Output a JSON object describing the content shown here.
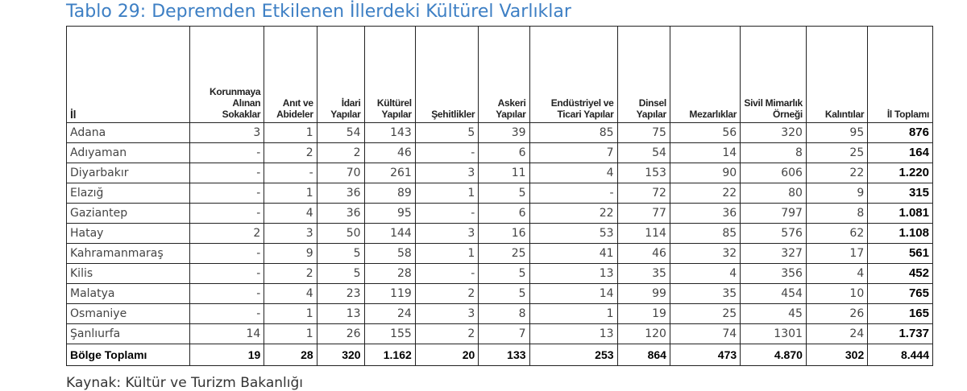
{
  "title": "Tablo 29: Depremden Etkilenen İllerdeki Kültürel Varlıklar",
  "headers": [
    "İl",
    "Korunmaya Alınan Sokaklar",
    "Anıt ve Abideler",
    "İdari Yapılar",
    "Kültürel Yapılar",
    "Şehitlikler",
    "Askeri Yapılar",
    "Endüstriyel ve Ticari Yapılar",
    "Dinsel Yapılar",
    "Mezarlıklar",
    "Sivil Mimarlık Örneği",
    "Kalıntılar",
    "İl Toplamı"
  ],
  "rows": [
    [
      "Adana",
      "3",
      "1",
      "54",
      "143",
      "5",
      "39",
      "85",
      "75",
      "56",
      "320",
      "95",
      "876"
    ],
    [
      "Adıyaman",
      "-",
      "2",
      "2",
      "46",
      "-",
      "6",
      "7",
      "54",
      "14",
      "8",
      "25",
      "164"
    ],
    [
      "Diyarbakır",
      "-",
      "-",
      "70",
      "261",
      "3",
      "11",
      "4",
      "153",
      "90",
      "606",
      "22",
      "1.220"
    ],
    [
      "Elazığ",
      "-",
      "1",
      "36",
      "89",
      "1",
      "5",
      "-",
      "72",
      "22",
      "80",
      "9",
      "315"
    ],
    [
      "Gaziantep",
      "-",
      "4",
      "36",
      "95",
      "-",
      "6",
      "22",
      "77",
      "36",
      "797",
      "8",
      "1.081"
    ],
    [
      "Hatay",
      "2",
      "3",
      "50",
      "144",
      "3",
      "16",
      "53",
      "114",
      "85",
      "576",
      "62",
      "1.108"
    ],
    [
      "Kahramanmaraş",
      "-",
      "9",
      "5",
      "58",
      "1",
      "25",
      "41",
      "46",
      "32",
      "327",
      "17",
      "561"
    ],
    [
      "Kilis",
      "-",
      "2",
      "5",
      "28",
      "-",
      "5",
      "13",
      "35",
      "4",
      "356",
      "4",
      "452"
    ],
    [
      "Malatya",
      "-",
      "4",
      "23",
      "119",
      "2",
      "5",
      "14",
      "99",
      "35",
      "454",
      "10",
      "765"
    ],
    [
      "Osmaniye",
      "-",
      "1",
      "13",
      "24",
      "3",
      "8",
      "1",
      "19",
      "25",
      "45",
      "26",
      "165"
    ],
    [
      "Şanlıurfa",
      "14",
      "1",
      "26",
      "155",
      "2",
      "7",
      "13",
      "120",
      "74",
      "1301",
      "24",
      "1.737"
    ]
  ],
  "total_row": [
    "Bölge Toplamı",
    "19",
    "28",
    "320",
    "1.162",
    "20",
    "133",
    "253",
    "864",
    "473",
    "4.870",
    "302",
    "8.444"
  ],
  "source": "Kaynak: Kültür ve Turizm Bakanlığı"
}
